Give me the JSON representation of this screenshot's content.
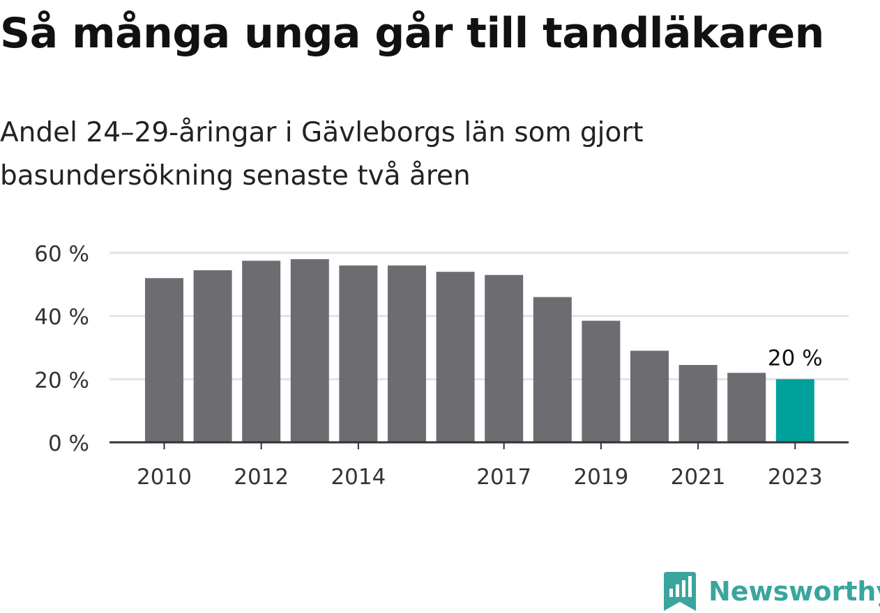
{
  "title": "Så många unga går till tandläkaren",
  "subtitle": "Andel 24–29-åringar i Gävleborgs län som gjort basundersökning senaste två åren",
  "chart_data": {
    "type": "bar",
    "categories": [
      2010,
      2011,
      2012,
      2013,
      2014,
      2015,
      2016,
      2017,
      2018,
      2019,
      2020,
      2021,
      2022,
      2023
    ],
    "values": [
      52,
      54.5,
      57.5,
      58,
      56,
      56,
      54,
      53,
      46,
      38.5,
      29,
      24.5,
      22,
      20
    ],
    "x_tick_labels": [
      "2010",
      "2012",
      "2014",
      "2017",
      "2019",
      "2021",
      "2023"
    ],
    "y_ticks": [
      0,
      20,
      40,
      60
    ],
    "y_tick_labels": [
      "0 %",
      "20 %",
      "40 %",
      "60 %"
    ],
    "ylim": [
      0,
      60
    ],
    "grid": true,
    "highlight_index": 13,
    "highlight_label": "20 %",
    "colors": {
      "bar": "#6d6c71",
      "highlight": "#00a19a",
      "grid": "#e3e3e3",
      "axis": "#333333"
    }
  },
  "brand": {
    "name": "Newsworthy",
    "logo_icon": "chart-bookmark-icon",
    "color": "#3aa59d"
  }
}
